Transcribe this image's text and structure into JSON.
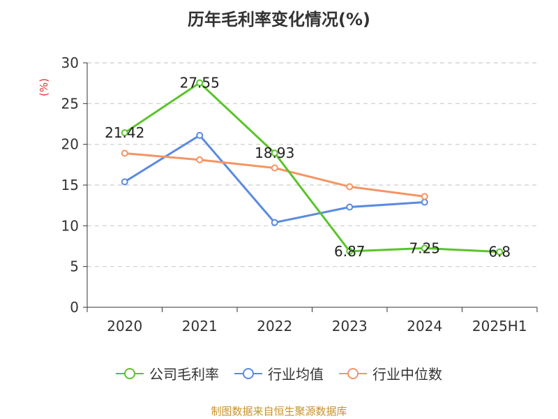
{
  "title": "历年毛利率变化情况(%)",
  "source": "制图数据来自恒生聚源数据库",
  "chart_data": {
    "type": "line",
    "title": "历年毛利率变化情况(%)",
    "ylabel": "(%)",
    "xlabel": "",
    "categories": [
      "2020",
      "2021",
      "2022",
      "2023",
      "2024",
      "2025H1"
    ],
    "ylim": [
      0,
      30
    ],
    "yticks": [
      0,
      5,
      10,
      15,
      20,
      25,
      30
    ],
    "grid": true,
    "legend_position": "bottom",
    "series": [
      {
        "name": "公司毛利率",
        "color": "#5ac42a",
        "values": [
          21.42,
          27.55,
          18.93,
          6.87,
          7.25,
          6.8
        ],
        "labels": [
          "21.42",
          "27.55",
          "18.93",
          "6.87",
          "7.25",
          "6.8"
        ]
      },
      {
        "name": "行业均值",
        "color": "#5b8ae0",
        "values": [
          15.4,
          21.1,
          10.4,
          12.3,
          12.9,
          null
        ],
        "labels": null
      },
      {
        "name": "行业中位数",
        "color": "#f59463",
        "values": [
          18.9,
          18.1,
          17.1,
          14.8,
          13.6,
          null
        ],
        "labels": null
      }
    ]
  }
}
